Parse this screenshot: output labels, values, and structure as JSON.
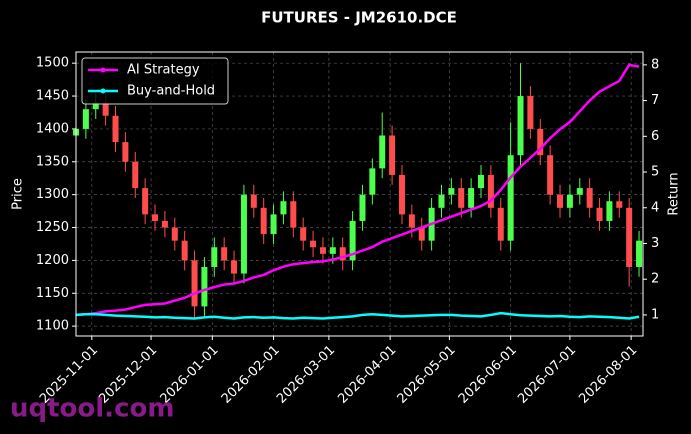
{
  "chart_data": {
    "type": "candlestick",
    "title": "FUTURES - JM2610.DCE",
    "ylabel": "Price",
    "y2label": "Return",
    "watermark": "uqtool.com",
    "x": [
      "2025-10-24",
      "2025-10-29",
      "2025-11-03",
      "2025-11-08",
      "2025-11-13",
      "2025-11-18",
      "2025-11-23",
      "2025-11-28",
      "2025-12-03",
      "2025-12-08",
      "2025-12-13",
      "2025-12-18",
      "2025-12-23",
      "2025-12-28",
      "2026-01-02",
      "2026-01-07",
      "2026-01-12",
      "2026-01-17",
      "2026-01-22",
      "2026-01-27",
      "2026-02-01",
      "2026-02-06",
      "2026-02-11",
      "2026-02-16",
      "2026-02-21",
      "2026-02-26",
      "2026-03-03",
      "2026-03-08",
      "2026-03-13",
      "2026-03-18",
      "2026-03-23",
      "2026-03-28",
      "2026-04-02",
      "2026-04-07",
      "2026-04-12",
      "2026-04-17",
      "2026-04-22",
      "2026-04-27",
      "2026-05-02",
      "2026-05-07",
      "2026-05-12",
      "2026-05-17",
      "2026-05-22",
      "2026-05-27",
      "2026-06-01",
      "2026-06-06",
      "2026-06-11",
      "2026-06-16",
      "2026-06-21",
      "2026-06-26",
      "2026-07-01",
      "2026-07-06",
      "2026-07-11",
      "2026-07-16",
      "2026-07-21",
      "2026-07-26",
      "2026-07-31",
      "2026-08-05"
    ],
    "open": [
      1390,
      1400,
      1430,
      1440,
      1420,
      1380,
      1350,
      1310,
      1270,
      1260,
      1250,
      1230,
      1200,
      1130,
      1190,
      1220,
      1200,
      1180,
      1300,
      1280,
      1240,
      1270,
      1290,
      1250,
      1230,
      1220,
      1210,
      1220,
      1200,
      1260,
      1300,
      1340,
      1390,
      1330,
      1270,
      1250,
      1230,
      1280,
      1300,
      1310,
      1280,
      1310,
      1330,
      1280,
      1230,
      1360,
      1450,
      1400,
      1360,
      1300,
      1280,
      1300,
      1310,
      1280,
      1260,
      1290,
      1280,
      1190
    ],
    "high": [
      1415,
      1445,
      1455,
      1455,
      1435,
      1395,
      1365,
      1325,
      1285,
      1275,
      1265,
      1245,
      1215,
      1205,
      1235,
      1235,
      1215,
      1315,
      1315,
      1295,
      1285,
      1305,
      1305,
      1265,
      1245,
      1235,
      1235,
      1235,
      1275,
      1315,
      1355,
      1425,
      1405,
      1345,
      1285,
      1265,
      1295,
      1315,
      1325,
      1325,
      1325,
      1345,
      1345,
      1295,
      1410,
      1500,
      1465,
      1415,
      1375,
      1315,
      1315,
      1325,
      1325,
      1295,
      1305,
      1305,
      1295,
      1245
    ],
    "low": [
      1375,
      1385,
      1415,
      1405,
      1365,
      1335,
      1295,
      1255,
      1245,
      1235,
      1215,
      1185,
      1110,
      1115,
      1175,
      1185,
      1165,
      1165,
      1265,
      1225,
      1225,
      1255,
      1235,
      1215,
      1205,
      1195,
      1195,
      1185,
      1185,
      1245,
      1285,
      1325,
      1315,
      1255,
      1235,
      1215,
      1215,
      1265,
      1285,
      1265,
      1265,
      1295,
      1265,
      1215,
      1215,
      1345,
      1385,
      1345,
      1285,
      1265,
      1265,
      1285,
      1265,
      1245,
      1245,
      1265,
      1160,
      1175
    ],
    "close": [
      1400,
      1430,
      1440,
      1420,
      1380,
      1350,
      1310,
      1270,
      1260,
      1250,
      1230,
      1200,
      1130,
      1190,
      1220,
      1200,
      1180,
      1300,
      1280,
      1240,
      1270,
      1290,
      1250,
      1230,
      1220,
      1210,
      1220,
      1200,
      1260,
      1300,
      1340,
      1390,
      1330,
      1270,
      1250,
      1230,
      1280,
      1300,
      1310,
      1280,
      1310,
      1330,
      1280,
      1230,
      1360,
      1450,
      1400,
      1360,
      1300,
      1280,
      1300,
      1310,
      1280,
      1260,
      1290,
      1280,
      1190,
      1230
    ],
    "up_color": "#4dff4d",
    "down_color": "#ff4d4d",
    "series": [
      {
        "name": "AI Strategy",
        "color": "#ff00ff",
        "axis": "y2",
        "values": [
          1.0,
          1.02,
          1.05,
          1.1,
          1.12,
          1.15,
          1.22,
          1.28,
          1.3,
          1.32,
          1.4,
          1.48,
          1.6,
          1.7,
          1.78,
          1.85,
          1.88,
          1.95,
          2.05,
          2.12,
          2.25,
          2.35,
          2.42,
          2.45,
          2.48,
          2.5,
          2.55,
          2.62,
          2.7,
          2.8,
          2.9,
          3.05,
          3.15,
          3.25,
          3.35,
          3.45,
          3.55,
          3.65,
          3.75,
          3.85,
          3.95,
          4.05,
          4.2,
          4.5,
          4.85,
          5.15,
          5.4,
          5.65,
          5.95,
          6.2,
          6.4,
          6.7,
          7.0,
          7.25,
          7.4,
          7.55,
          8.0,
          7.95
        ]
      },
      {
        "name": "Buy-and-Hold",
        "color": "#00ffff",
        "axis": "y2",
        "values": [
          1.0,
          1.02,
          1.02,
          1.0,
          0.98,
          0.97,
          0.96,
          0.95,
          0.93,
          0.94,
          0.92,
          0.91,
          0.9,
          0.93,
          0.95,
          0.92,
          0.9,
          0.93,
          0.94,
          0.92,
          0.93,
          0.91,
          0.9,
          0.92,
          0.91,
          0.9,
          0.92,
          0.94,
          0.96,
          1.0,
          1.02,
          1.0,
          0.98,
          0.96,
          0.97,
          0.98,
          0.99,
          1.0,
          1.0,
          0.98,
          0.97,
          0.96,
          1.0,
          1.05,
          1.02,
          0.99,
          0.98,
          0.97,
          0.96,
          0.97,
          0.95,
          0.94,
          0.96,
          0.95,
          0.94,
          0.92,
          0.9,
          0.95
        ]
      }
    ],
    "xlim": [
      "2025-10-24",
      "2026-08-07"
    ],
    "xticks": [
      "2025-11-01",
      "2025-12-01",
      "2026-01-01",
      "2026-02-01",
      "2026-03-01",
      "2026-04-01",
      "2026-05-01",
      "2026-06-01",
      "2026-07-01",
      "2026-08-01"
    ],
    "ylim": [
      1085,
      1517
    ],
    "yticks": [
      1100,
      1150,
      1200,
      1250,
      1300,
      1350,
      1400,
      1450,
      1500
    ],
    "y2lim": [
      0.41,
      8.36
    ],
    "y2ticks": [
      1,
      2,
      3,
      4,
      5,
      6,
      7,
      8
    ],
    "grid": true,
    "legend": "upper left"
  }
}
